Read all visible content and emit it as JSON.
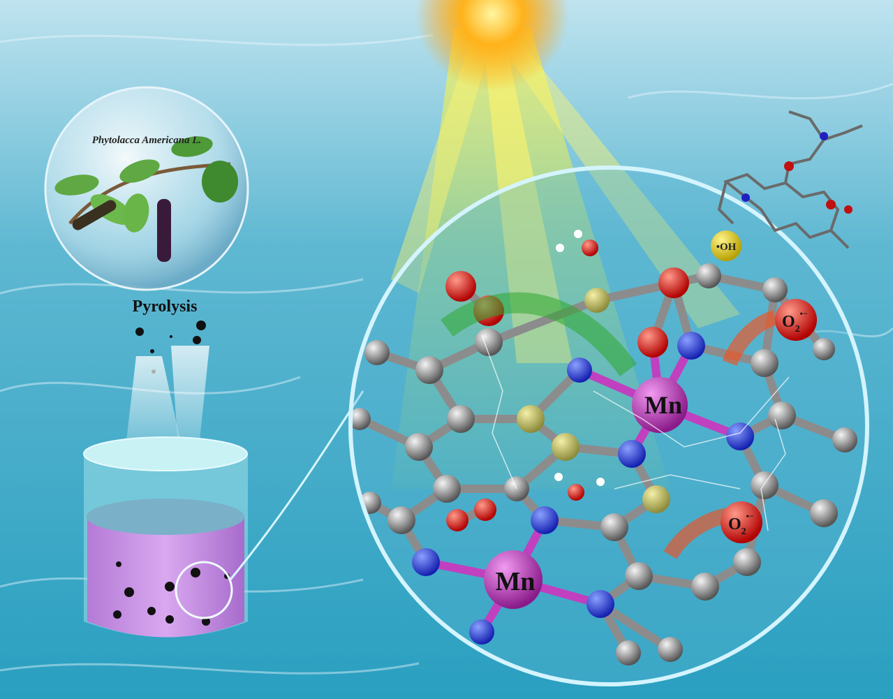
{
  "bubble": {
    "label": "Phytolacca Americana L."
  },
  "process": {
    "label": "Pyrolysis"
  },
  "hydroxyl": {
    "label": "•OH"
  },
  "manganese": [
    {
      "label": "Mn"
    },
    {
      "label": "Mn"
    }
  ],
  "superoxide": [
    {
      "base": "O",
      "sub": "2",
      "sup": "•−"
    },
    {
      "base": "O",
      "sub": "2",
      "sup": "•−"
    }
  ]
}
